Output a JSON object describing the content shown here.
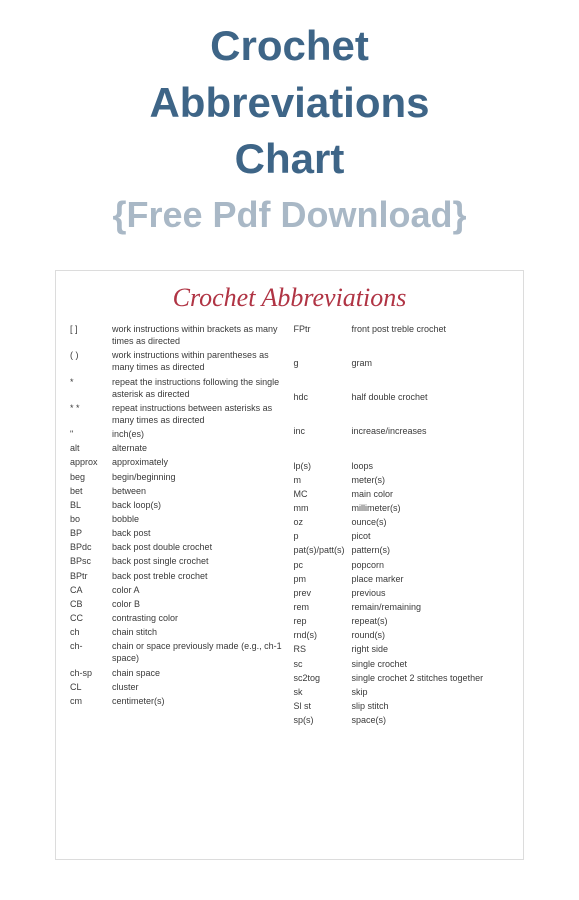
{
  "colors": {
    "title": "#3e6587",
    "subtitle": "#a9b8c6",
    "chartTitle": "#b03444",
    "text": "#3a3a3a",
    "border": "#dcdcdc",
    "background": "#ffffff"
  },
  "fonts": {
    "title_size": 42,
    "subtitle_size": 36,
    "chart_title_size": 26,
    "body_size": 9
  },
  "header": {
    "line1": "Crochet",
    "line2": "Abbreviations",
    "line3": "Chart",
    "subtitle": "{Free Pdf Download}"
  },
  "chart": {
    "title": "Crochet Abbreviations",
    "left": [
      {
        "abbr": "[ ]",
        "def": "work instructions within brackets as many times as directed"
      },
      {
        "abbr": "( )",
        "def": "work instructions within parentheses as many times as directed"
      },
      {
        "abbr": "*",
        "def": "repeat the instructions following the single asterisk as directed"
      },
      {
        "abbr": "* *",
        "def": "repeat instructions between asterisks as many times as directed"
      },
      {
        "abbr": "\"",
        "def": "inch(es)"
      },
      {
        "abbr": "alt",
        "def": "alternate"
      },
      {
        "abbr": "approx",
        "def": "approximately"
      },
      {
        "abbr": "beg",
        "def": "begin/beginning"
      },
      {
        "abbr": "bet",
        "def": "between"
      },
      {
        "abbr": "BL",
        "def": "back loop(s)"
      },
      {
        "abbr": "bo",
        "def": "bobble"
      },
      {
        "abbr": "BP",
        "def": "back post"
      },
      {
        "abbr": "BPdc",
        "def": "back post double crochet"
      },
      {
        "abbr": "BPsc",
        "def": "back post single crochet"
      },
      {
        "abbr": "BPtr",
        "def": "back post treble crochet"
      },
      {
        "abbr": "CA",
        "def": "color A"
      },
      {
        "abbr": "CB",
        "def": "color B"
      },
      {
        "abbr": "CC",
        "def": "contrasting color"
      },
      {
        "abbr": "ch",
        "def": "chain stitch"
      },
      {
        "abbr": "ch-",
        "def": "chain or space previously made (e.g., ch-1 space)"
      },
      {
        "abbr": "ch-sp",
        "def": "chain space"
      },
      {
        "abbr": "CL",
        "def": "cluster"
      },
      {
        "abbr": "cm",
        "def": "centimeter(s)"
      }
    ],
    "right": [
      {
        "abbr": "FPtr",
        "def": "front post treble crochet"
      },
      {
        "abbr": "g",
        "def": "gram"
      },
      {
        "abbr": "hdc",
        "def": "half double crochet"
      },
      {
        "abbr": "inc",
        "def": "increase/increases"
      },
      {
        "abbr": "lp(s)",
        "def": "loops"
      },
      {
        "abbr": "m",
        "def": "meter(s)"
      },
      {
        "abbr": "MC",
        "def": "main color"
      },
      {
        "abbr": "mm",
        "def": "millimeter(s)"
      },
      {
        "abbr": "oz",
        "def": "ounce(s)"
      },
      {
        "abbr": "p",
        "def": "picot"
      },
      {
        "abbr": "pat(s)/patt(s)",
        "def": "pattern(s)"
      },
      {
        "abbr": "pc",
        "def": "popcorn"
      },
      {
        "abbr": "pm",
        "def": "place marker"
      },
      {
        "abbr": "prev",
        "def": "previous"
      },
      {
        "abbr": "rem",
        "def": "remain/remaining"
      },
      {
        "abbr": "rep",
        "def": "repeat(s)"
      },
      {
        "abbr": "rnd(s)",
        "def": "round(s)"
      },
      {
        "abbr": "RS",
        "def": "right side"
      },
      {
        "abbr": "sc",
        "def": "single crochet"
      },
      {
        "abbr": "sc2tog",
        "def": "single crochet 2 stitches together"
      },
      {
        "abbr": "sk",
        "def": "skip"
      },
      {
        "abbr": "Sl st",
        "def": "slip stitch"
      },
      {
        "abbr": "sp(s)",
        "def": "space(s)"
      }
    ]
  }
}
